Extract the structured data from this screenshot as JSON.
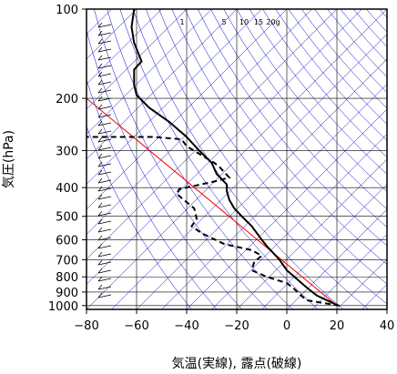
{
  "chart_data": {
    "type": "line",
    "title": "",
    "xlabel": "気温(実線), 露点(破線)",
    "ylabel": "気圧(hPa)",
    "xlim": [
      -80,
      40
    ],
    "ylim": [
      1030,
      100
    ],
    "y_scale": "log",
    "x_ticks": [
      -80,
      -60,
      -40,
      -20,
      0,
      20,
      40
    ],
    "x_tick_labels": [
      "−80",
      "−60",
      "−40",
      "−20",
      "0",
      "20",
      "40"
    ],
    "y_ticks": [
      100,
      200,
      300,
      400,
      500,
      600,
      700,
      800,
      900,
      1000
    ],
    "y_tick_labels": [
      "100",
      "200",
      "300",
      "400",
      "500",
      "600",
      "700",
      "800",
      "900",
      "1000"
    ],
    "mixing_ratio_labels": [
      "1",
      "5",
      "10",
      "15",
      "20g"
    ],
    "mixing_ratio_values": [
      1,
      5,
      10,
      15,
      20
    ],
    "series": [
      {
        "style": "solid",
        "color": "#000000",
        "points": [
          {
            "t": 20.5,
            "p": 1000
          },
          {
            "t": 12,
            "p": 925
          },
          {
            "t": 8,
            "p": 870
          },
          {
            "t": 3,
            "p": 800
          },
          {
            "t": 0,
            "p": 760
          },
          {
            "t": -3,
            "p": 700
          },
          {
            "t": -8,
            "p": 630
          },
          {
            "t": -10,
            "p": 600
          },
          {
            "t": -14,
            "p": 540
          },
          {
            "t": -18,
            "p": 500
          },
          {
            "t": -21,
            "p": 470
          },
          {
            "t": -23,
            "p": 440
          },
          {
            "t": -24,
            "p": 410
          },
          {
            "t": -24,
            "p": 390
          },
          {
            "t": -28,
            "p": 360
          },
          {
            "t": -30,
            "p": 330
          },
          {
            "t": -35,
            "p": 300
          },
          {
            "t": -40,
            "p": 270
          },
          {
            "t": -47,
            "p": 240
          },
          {
            "t": -55,
            "p": 215
          },
          {
            "t": -60,
            "p": 195
          },
          {
            "t": -61,
            "p": 180
          },
          {
            "t": -61,
            "p": 160
          },
          {
            "t": -58,
            "p": 150
          },
          {
            "t": -61,
            "p": 130
          },
          {
            "t": -62,
            "p": 115
          },
          {
            "t": -61,
            "p": 100
          }
        ]
      },
      {
        "style": "dashed",
        "color": "#000000",
        "points": [
          {
            "t": 21,
            "p": 1000
          },
          {
            "t": 8,
            "p": 960
          },
          {
            "t": 6,
            "p": 930
          },
          {
            "t": 3,
            "p": 880
          },
          {
            "t": 0,
            "p": 840
          },
          {
            "t": -8,
            "p": 800
          },
          {
            "t": -14,
            "p": 760
          },
          {
            "t": -13,
            "p": 710
          },
          {
            "t": -10,
            "p": 680
          },
          {
            "t": -14,
            "p": 650
          },
          {
            "t": -25,
            "p": 620
          },
          {
            "t": -34,
            "p": 570
          },
          {
            "t": -38,
            "p": 540
          },
          {
            "t": -36,
            "p": 510
          },
          {
            "t": -37,
            "p": 470
          },
          {
            "t": -44,
            "p": 420
          },
          {
            "t": -43,
            "p": 405
          },
          {
            "t": -28,
            "p": 380
          },
          {
            "t": -23,
            "p": 370
          },
          {
            "t": -27,
            "p": 340
          },
          {
            "t": -29,
            "p": 330
          },
          {
            "t": -33,
            "p": 315
          },
          {
            "t": -40,
            "p": 290
          },
          {
            "t": -42,
            "p": 275
          },
          {
            "t": -53,
            "p": 270
          },
          {
            "t": -80,
            "p": 270
          }
        ]
      }
    ]
  },
  "colors": {
    "background": "#ffffff",
    "grid": "#000000",
    "isotherm_dry_adiabat": "#0000cc",
    "reference_line": "#ff0000",
    "profile": "#000000"
  }
}
